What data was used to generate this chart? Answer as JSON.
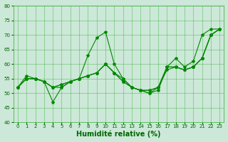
{
  "title": "",
  "xlabel": "Humidité relative (%)",
  "ylabel": "",
  "bg_color": "#cce8d8",
  "grid_color": "#33aa33",
  "line_color": "#008800",
  "xlim": [
    -0.5,
    23.5
  ],
  "ylim": [
    40,
    80
  ],
  "yticks": [
    40,
    45,
    50,
    55,
    60,
    65,
    70,
    75,
    80
  ],
  "xticks": [
    0,
    1,
    2,
    3,
    4,
    5,
    6,
    7,
    8,
    9,
    10,
    11,
    12,
    13,
    14,
    15,
    16,
    17,
    18,
    19,
    20,
    21,
    22,
    23
  ],
  "series": [
    [
      52,
      56,
      55,
      54,
      47,
      52,
      54,
      55,
      63,
      69,
      71,
      60,
      55,
      52,
      51,
      50,
      51,
      59,
      62,
      59,
      61,
      70,
      72,
      72
    ],
    [
      52,
      55,
      55,
      54,
      52,
      52,
      54,
      55,
      56,
      57,
      60,
      57,
      55,
      52,
      51,
      50,
      52,
      58,
      59,
      58,
      59,
      62,
      70,
      72
    ],
    [
      52,
      55,
      55,
      54,
      52,
      53,
      54,
      55,
      56,
      57,
      60,
      57,
      54,
      52,
      51,
      51,
      52,
      59,
      59,
      58,
      59,
      62,
      70,
      72
    ],
    [
      52,
      55,
      55,
      54,
      52,
      53,
      54,
      55,
      56,
      57,
      60,
      57,
      54,
      52,
      51,
      51,
      52,
      59,
      59,
      58,
      59,
      62,
      70,
      72
    ]
  ],
  "marker": "*",
  "marker_size": 3,
  "line_width": 0.8,
  "xlabel_fontsize": 7,
  "tick_fontsize": 5,
  "tick_color": "#006600"
}
